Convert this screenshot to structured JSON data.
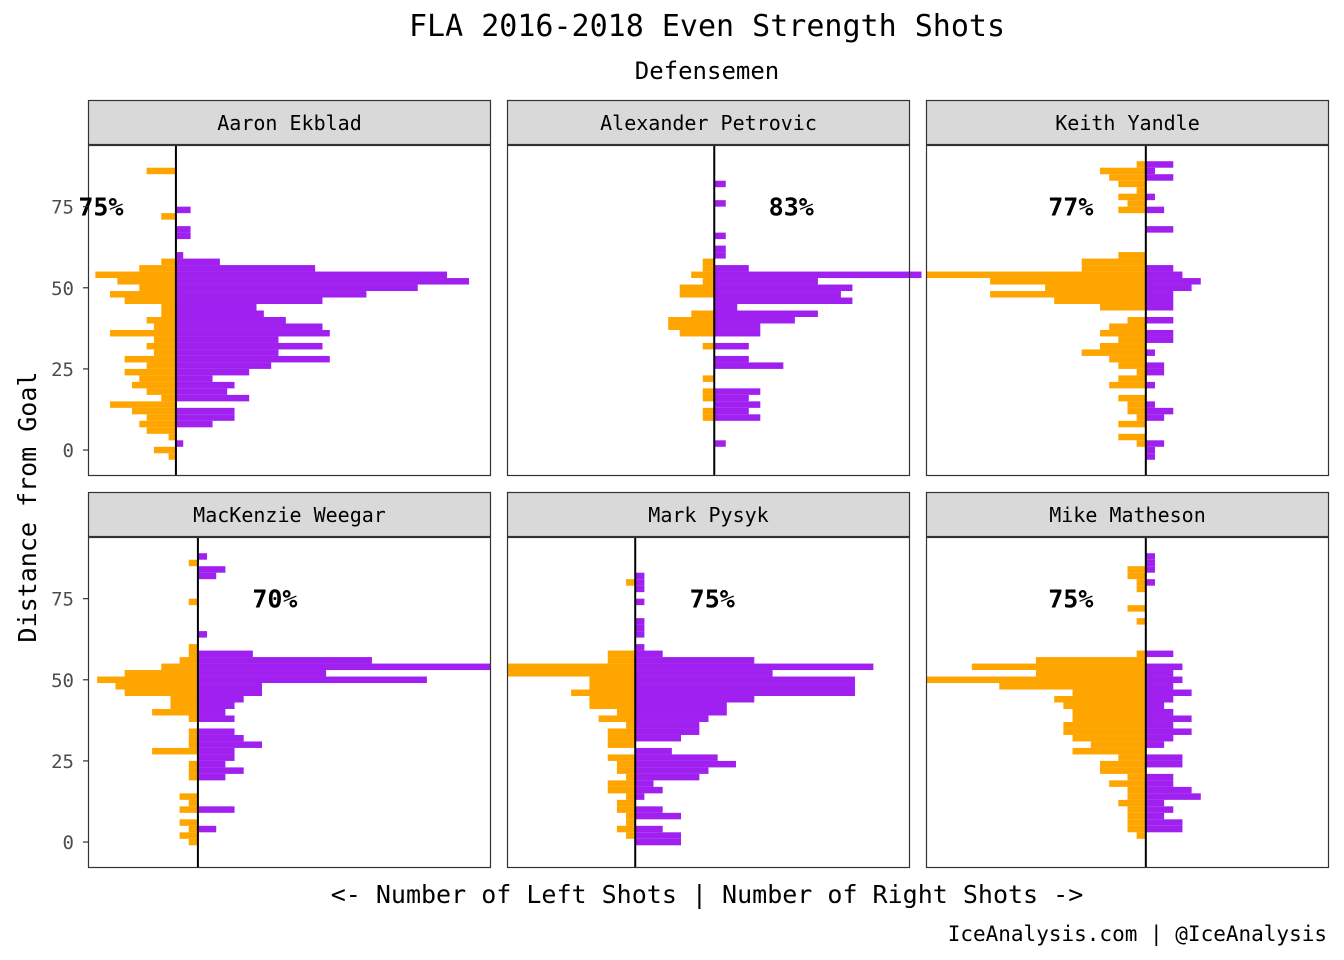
{
  "title": "FLA 2016-2018 Even Strength Shots",
  "subtitle": "Defensemen",
  "caption": "IceAnalysis.com | @IceAnalysis",
  "chart_data": {
    "type": "bar",
    "orientation": "horizontal",
    "layout": "facets 2x3",
    "xlabel": "<- Number of Left Shots | Number of Right Shots ->",
    "ylabel": "Distance from Goal",
    "ylim": [
      -8,
      94
    ],
    "yticks": [
      0,
      25,
      50,
      75
    ],
    "bin_width": 2,
    "grid": false,
    "colors": {
      "left_shots": "#FFA500",
      "right_shots": "#A020F0",
      "zero_line": "#000000",
      "strip_bg": "#d9d9d9"
    },
    "panels": [
      {
        "name": "Aaron Ekblad",
        "annotation": "75%",
        "xlim": [
          -12,
          43
        ],
        "bins": [
          [
            -2,
            -1,
            0
          ],
          [
            0,
            -3,
            0
          ],
          [
            2,
            0,
            1
          ],
          [
            4,
            -1,
            0
          ],
          [
            6,
            -4,
            0
          ],
          [
            8,
            -5,
            5
          ],
          [
            10,
            -4,
            8
          ],
          [
            12,
            -6,
            8
          ],
          [
            14,
            -9,
            0
          ],
          [
            16,
            -2,
            10
          ],
          [
            18,
            -4,
            7
          ],
          [
            20,
            -6,
            8
          ],
          [
            22,
            -5,
            5
          ],
          [
            24,
            -7,
            10
          ],
          [
            26,
            -4,
            13
          ],
          [
            28,
            -7,
            21
          ],
          [
            30,
            -3,
            14
          ],
          [
            32,
            -4,
            20
          ],
          [
            34,
            -3,
            14
          ],
          [
            36,
            -9,
            21
          ],
          [
            38,
            -3,
            20
          ],
          [
            40,
            -4,
            15
          ],
          [
            42,
            -2,
            12
          ],
          [
            44,
            -2,
            11
          ],
          [
            46,
            -7,
            20
          ],
          [
            48,
            -9,
            26
          ],
          [
            50,
            -5,
            33
          ],
          [
            52,
            -8,
            40
          ],
          [
            54,
            -11,
            37
          ],
          [
            56,
            -5,
            19
          ],
          [
            58,
            -2,
            6
          ],
          [
            60,
            0,
            1
          ],
          [
            66,
            0,
            2
          ],
          [
            68,
            0,
            2
          ],
          [
            72,
            -2,
            0
          ],
          [
            74,
            0,
            2
          ],
          [
            86,
            -4,
            0
          ]
        ]
      },
      {
        "name": "Alexander Petrovic",
        "annotation": "83%",
        "xlim": [
          -18,
          17
        ],
        "bins": [
          [
            2,
            0,
            1
          ],
          [
            10,
            -1,
            4
          ],
          [
            12,
            -1,
            3
          ],
          [
            14,
            0,
            4
          ],
          [
            16,
            -1,
            3
          ],
          [
            18,
            -1,
            4
          ],
          [
            22,
            -1,
            0
          ],
          [
            26,
            0,
            6
          ],
          [
            28,
            0,
            3
          ],
          [
            32,
            -1,
            3
          ],
          [
            36,
            -3,
            4
          ],
          [
            38,
            -4,
            4
          ],
          [
            40,
            -4,
            7
          ],
          [
            42,
            -2,
            9
          ],
          [
            44,
            0,
            2
          ],
          [
            46,
            0,
            12
          ],
          [
            48,
            -3,
            11
          ],
          [
            50,
            -3,
            12
          ],
          [
            52,
            -1,
            9
          ],
          [
            54,
            -2,
            18
          ],
          [
            56,
            -1,
            3
          ],
          [
            58,
            -1,
            0
          ],
          [
            60,
            0,
            1
          ],
          [
            62,
            0,
            1
          ],
          [
            66,
            0,
            1
          ],
          [
            76,
            0,
            1
          ],
          [
            82,
            0,
            1
          ]
        ]
      },
      {
        "name": "Keith Yandle",
        "annotation": "77%",
        "xlim": [
          -24,
          20
        ],
        "bins": [
          [
            -2,
            0,
            1
          ],
          [
            0,
            0,
            1
          ],
          [
            2,
            -1,
            2
          ],
          [
            4,
            -3,
            0
          ],
          [
            8,
            -3,
            0
          ],
          [
            10,
            -1,
            2
          ],
          [
            12,
            -2,
            3
          ],
          [
            14,
            -2,
            1
          ],
          [
            16,
            -3,
            0
          ],
          [
            20,
            -4,
            1
          ],
          [
            22,
            -3,
            0
          ],
          [
            24,
            -1,
            2
          ],
          [
            26,
            -3,
            2
          ],
          [
            28,
            -4,
            0
          ],
          [
            30,
            -7,
            1
          ],
          [
            32,
            -5,
            0
          ],
          [
            34,
            -3,
            3
          ],
          [
            36,
            -5,
            3
          ],
          [
            38,
            -4,
            0
          ],
          [
            40,
            -2,
            3
          ],
          [
            44,
            -5,
            3
          ],
          [
            46,
            -10,
            3
          ],
          [
            48,
            -17,
            3
          ],
          [
            50,
            -11,
            5
          ],
          [
            52,
            -17,
            6
          ],
          [
            54,
            -24,
            4
          ],
          [
            56,
            -7,
            3
          ],
          [
            58,
            -7,
            0
          ],
          [
            60,
            -3,
            0
          ],
          [
            68,
            0,
            3
          ],
          [
            74,
            -3,
            2
          ],
          [
            76,
            -2,
            0
          ],
          [
            78,
            -3,
            1
          ],
          [
            80,
            -1,
            0
          ],
          [
            82,
            -3,
            0
          ],
          [
            84,
            -4,
            3
          ],
          [
            86,
            -5,
            1
          ],
          [
            88,
            -1,
            3
          ]
        ]
      },
      {
        "name": "MacKenzie Weegar",
        "annotation": "70%",
        "xlim": [
          -12,
          32
        ],
        "bins": [
          [
            0,
            -1,
            0
          ],
          [
            2,
            -2,
            0
          ],
          [
            4,
            -1,
            2
          ],
          [
            6,
            -2,
            0
          ],
          [
            10,
            -2,
            4
          ],
          [
            12,
            -1,
            0
          ],
          [
            14,
            -2,
            0
          ],
          [
            20,
            -1,
            3
          ],
          [
            22,
            -1,
            5
          ],
          [
            24,
            -1,
            3
          ],
          [
            26,
            0,
            4
          ],
          [
            28,
            -5,
            4
          ],
          [
            30,
            -1,
            7
          ],
          [
            32,
            -1,
            5
          ],
          [
            34,
            -1,
            4
          ],
          [
            38,
            -1,
            4
          ],
          [
            40,
            -5,
            3
          ],
          [
            42,
            -3,
            4
          ],
          [
            44,
            -3,
            5
          ],
          [
            46,
            -8,
            7
          ],
          [
            48,
            -9,
            7
          ],
          [
            50,
            -11,
            25
          ],
          [
            52,
            -8,
            14
          ],
          [
            54,
            -4,
            32
          ],
          [
            56,
            -2,
            19
          ],
          [
            58,
            -1,
            6
          ],
          [
            60,
            -1,
            0
          ],
          [
            64,
            0,
            1
          ],
          [
            74,
            -1,
            0
          ],
          [
            82,
            0,
            2
          ],
          [
            84,
            0,
            3
          ],
          [
            86,
            -1,
            0
          ],
          [
            88,
            0,
            1
          ]
        ]
      },
      {
        "name": "Mark Pysyk",
        "annotation": "75%",
        "xlim": [
          -14,
          30
        ],
        "bins": [
          [
            0,
            0,
            5
          ],
          [
            2,
            -1,
            5
          ],
          [
            4,
            -2,
            3
          ],
          [
            6,
            -1,
            0
          ],
          [
            8,
            -1,
            5
          ],
          [
            10,
            -2,
            3
          ],
          [
            12,
            -2,
            0
          ],
          [
            14,
            -1,
            1
          ],
          [
            16,
            -3,
            3
          ],
          [
            18,
            -3,
            2
          ],
          [
            20,
            -1,
            7
          ],
          [
            22,
            -2,
            8
          ],
          [
            24,
            -2,
            11
          ],
          [
            26,
            -3,
            9
          ],
          [
            28,
            0,
            4
          ],
          [
            30,
            -3,
            0
          ],
          [
            32,
            -3,
            5
          ],
          [
            34,
            -3,
            7
          ],
          [
            36,
            -1,
            7
          ],
          [
            38,
            -4,
            8
          ],
          [
            40,
            -2,
            10
          ],
          [
            42,
            -5,
            10
          ],
          [
            44,
            -5,
            13
          ],
          [
            46,
            -7,
            24
          ],
          [
            48,
            -5,
            24
          ],
          [
            50,
            -5,
            24
          ],
          [
            52,
            -14,
            15
          ],
          [
            54,
            -14,
            26
          ],
          [
            56,
            -3,
            13
          ],
          [
            58,
            -3,
            3
          ],
          [
            60,
            0,
            1
          ],
          [
            64,
            0,
            1
          ],
          [
            66,
            0,
            1
          ],
          [
            68,
            0,
            1
          ],
          [
            74,
            0,
            1
          ],
          [
            78,
            0,
            1
          ],
          [
            80,
            -1,
            1
          ],
          [
            82,
            0,
            1
          ]
        ]
      },
      {
        "name": "Mike Matheson",
        "annotation": "75%",
        "xlim": [
          -24,
          20
        ],
        "bins": [
          [
            2,
            -1,
            0
          ],
          [
            4,
            -2,
            4
          ],
          [
            6,
            -2,
            4
          ],
          [
            8,
            -2,
            2
          ],
          [
            10,
            -2,
            3
          ],
          [
            12,
            -3,
            2
          ],
          [
            14,
            -2,
            6
          ],
          [
            16,
            -2,
            5
          ],
          [
            18,
            -4,
            3
          ],
          [
            20,
            -2,
            3
          ],
          [
            22,
            -5,
            0
          ],
          [
            24,
            -5,
            4
          ],
          [
            26,
            -3,
            4
          ],
          [
            28,
            -8,
            0
          ],
          [
            30,
            -6,
            2
          ],
          [
            32,
            -8,
            3
          ],
          [
            34,
            -9,
            5
          ],
          [
            36,
            -9,
            3
          ],
          [
            38,
            -8,
            5
          ],
          [
            40,
            -8,
            3
          ],
          [
            42,
            -9,
            2
          ],
          [
            44,
            -10,
            3
          ],
          [
            46,
            -8,
            5
          ],
          [
            48,
            -16,
            3
          ],
          [
            50,
            -24,
            4
          ],
          [
            52,
            -12,
            3
          ],
          [
            54,
            -19,
            4
          ],
          [
            56,
            -12,
            0
          ],
          [
            58,
            -1,
            3
          ],
          [
            68,
            -1,
            0
          ],
          [
            72,
            -2,
            0
          ],
          [
            78,
            -1,
            0
          ],
          [
            80,
            -1,
            1
          ],
          [
            82,
            -2,
            0
          ],
          [
            84,
            -2,
            1
          ],
          [
            86,
            0,
            1
          ],
          [
            88,
            0,
            1
          ]
        ]
      }
    ]
  }
}
